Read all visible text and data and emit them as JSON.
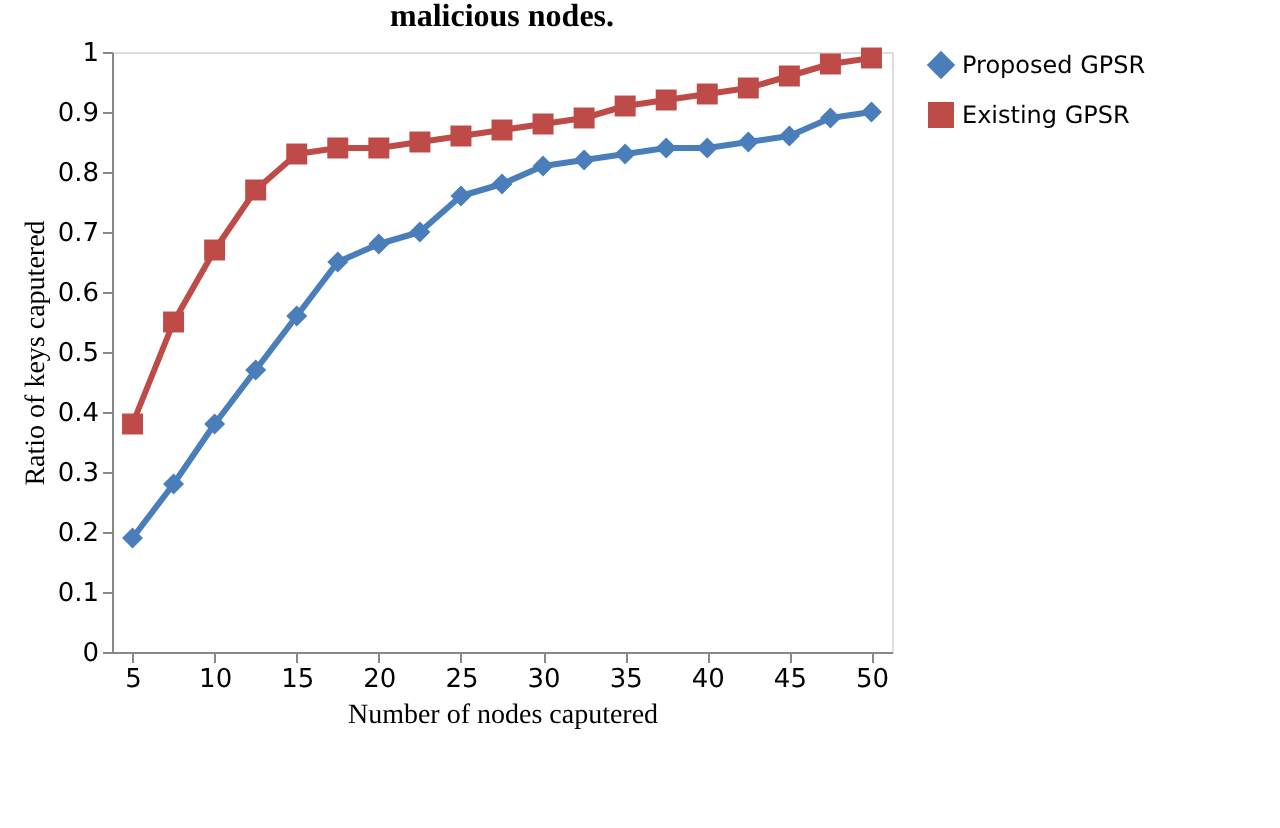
{
  "chart_data": {
    "type": "line",
    "title": "malicious nodes.",
    "xlabel": "Number of nodes caputered",
    "ylabel": "Ratio of keys caputered",
    "x": [
      5,
      7.5,
      10,
      12.5,
      15,
      17.5,
      20,
      22.5,
      25,
      27.5,
      30,
      32.5,
      35,
      37.5,
      40,
      42.5,
      45,
      47.5,
      50
    ],
    "series": [
      {
        "name": "Proposed GPSR",
        "color": "#4a7ebb",
        "marker": "diamond",
        "values": [
          0.19,
          0.28,
          0.38,
          0.47,
          0.56,
          0.65,
          0.68,
          0.7,
          0.76,
          0.78,
          0.81,
          0.82,
          0.83,
          0.84,
          0.84,
          0.85,
          0.86,
          0.89,
          0.9
        ]
      },
      {
        "name": "Existing GPSR",
        "color": "#be4b48",
        "marker": "square",
        "values": [
          0.38,
          0.55,
          0.67,
          0.77,
          0.83,
          0.84,
          0.84,
          0.85,
          0.86,
          0.87,
          0.88,
          0.89,
          0.91,
          0.92,
          0.93,
          0.94,
          0.96,
          0.98,
          0.99
        ]
      }
    ],
    "xlim": [
      3.75,
      51.25
    ],
    "xticks": [
      5,
      10,
      15,
      20,
      25,
      30,
      35,
      40,
      45,
      50
    ],
    "ylim": [
      0,
      1
    ],
    "yticks": [
      0,
      0.1,
      0.2,
      0.3,
      0.4,
      0.5,
      0.6,
      0.7,
      0.8,
      0.9,
      1
    ],
    "grid": false,
    "legend": "right",
    "line_style": "solid"
  }
}
